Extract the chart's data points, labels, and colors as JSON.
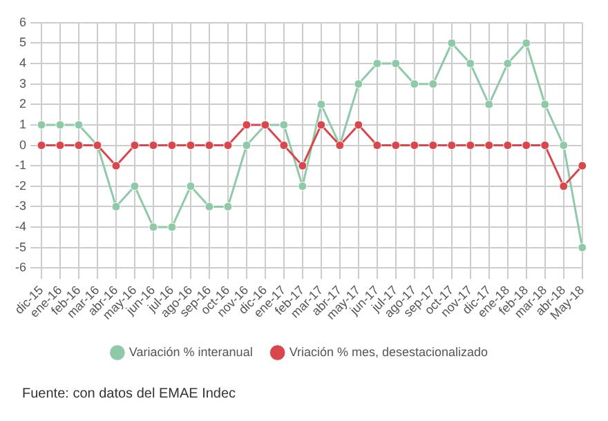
{
  "chart_data": {
    "type": "line",
    "categories": [
      "dic-15",
      "ene-16",
      "feb-16",
      "mar-16",
      "abr-16",
      "may-16",
      "jun-16",
      "jul-16",
      "ago-16",
      "sep-16",
      "oct-16",
      "nov-16",
      "dic-16",
      "ene-17",
      "feb-17",
      "mar-17",
      "abr-17",
      "may-17",
      "jun-17",
      "jul-17",
      "ago-17",
      "sep-17",
      "oct-17",
      "nov-17",
      "dic-17",
      "ene-18",
      "feb-18",
      "mar-18",
      "abr-18",
      "May-18"
    ],
    "series": [
      {
        "name": "Variación % interanual",
        "color": "#8fcaa8",
        "values": [
          1,
          1,
          1,
          0,
          -3,
          -2,
          -4,
          -4,
          -2,
          -3,
          -3,
          0,
          1,
          1,
          -2,
          2,
          0,
          3,
          4,
          4,
          3,
          3,
          5,
          4,
          2,
          4,
          5,
          2,
          0,
          -5
        ]
      },
      {
        "name": "Vriación % mes, desestacionalizado",
        "color": "#d9474d",
        "values": [
          0,
          0,
          0,
          0,
          -1,
          0,
          0,
          0,
          0,
          0,
          0,
          1,
          1,
          0,
          -1,
          1,
          0,
          1,
          0,
          0,
          0,
          0,
          0,
          0,
          0,
          0,
          0,
          0,
          -2,
          -1
        ]
      }
    ],
    "ylim": [
      -6,
      6
    ],
    "yticks": [
      -6,
      -5,
      -4,
      -3,
      -2,
      -1,
      0,
      1,
      2,
      3,
      4,
      5,
      6
    ],
    "grid": true,
    "legend": "bottom",
    "marker": "circle",
    "line_style": "solid",
    "annotations": [
      "Fuente: con datos del EMAE Indec"
    ]
  }
}
